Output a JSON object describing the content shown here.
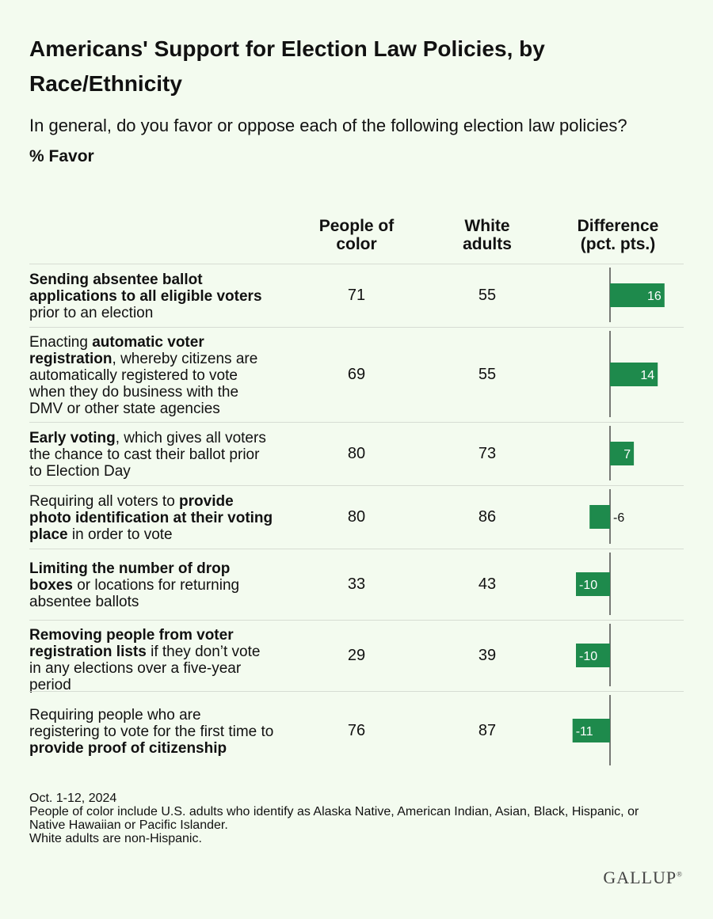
{
  "title": "Americans' Support for Election Law Policies, by Race/Ethnicity",
  "subtitle": "In general, do you favor or oppose each of the following election law policies?",
  "unit_label": "% Favor",
  "columns": {
    "poc": "People of color",
    "white": "White adults",
    "diff": "Difference (pct. pts.)"
  },
  "bar_color": "#1e8a4c",
  "rows": [
    {
      "segments": [
        [
          "Sending absentee ballot applications to all eligible voters",
          true
        ],
        [
          " prior to an election",
          false
        ]
      ],
      "poc": 71,
      "white": 55,
      "diff": 16
    },
    {
      "segments": [
        [
          "Enacting ",
          false
        ],
        [
          "automatic voter registration",
          true
        ],
        [
          ", whereby citizens are automatically registered to vote when they do business with the DMV or other state agencies",
          false
        ]
      ],
      "poc": 69,
      "white": 55,
      "diff": 14
    },
    {
      "segments": [
        [
          "Early voting",
          true
        ],
        [
          ", which gives all voters the chance to cast their ballot prior to Election Day",
          false
        ]
      ],
      "poc": 80,
      "white": 73,
      "diff": 7
    },
    {
      "segments": [
        [
          "Requiring all voters to ",
          false
        ],
        [
          "provide photo identification at their voting place",
          true
        ],
        [
          " in order to vote",
          false
        ]
      ],
      "poc": 80,
      "white": 86,
      "diff": -6
    },
    {
      "segments": [
        [
          "Limiting the number of drop boxes",
          true
        ],
        [
          " or locations for returning absentee ballots",
          false
        ]
      ],
      "poc": 33,
      "white": 43,
      "diff": -10
    },
    {
      "segments": [
        [
          "Removing people from voter registration lists",
          true
        ],
        [
          " if they don’t vote in any elections over a five-year period",
          false
        ]
      ],
      "poc": 29,
      "white": 39,
      "diff": -10
    },
    {
      "segments": [
        [
          "Requiring people who are registering to vote for the first time to ",
          false
        ],
        [
          "provide proof of citizenship",
          true
        ]
      ],
      "poc": 76,
      "white": 87,
      "diff": -11
    }
  ],
  "chart_data": {
    "type": "table",
    "categories": [
      "Sending absentee ballot applications to all eligible voters prior to an election",
      "Enacting automatic voter registration, whereby citizens are automatically registered to vote when they do business with the DMV or other state agencies",
      "Early voting, which gives all voters the chance to cast their ballot prior to Election Day",
      "Requiring all voters to provide photo identification at their voting place in order to vote",
      "Limiting the number of drop boxes or locations for returning absentee ballots",
      "Removing people from voter registration lists if they don’t vote in any elections over a five-year period",
      "Requiring people who are registering to vote for the first time to provide proof of citizenship"
    ],
    "series": [
      {
        "name": "People of color",
        "values": [
          71,
          69,
          80,
          80,
          33,
          29,
          76
        ]
      },
      {
        "name": "White adults",
        "values": [
          55,
          55,
          73,
          86,
          43,
          39,
          87
        ]
      },
      {
        "name": "Difference (pct. pts.)",
        "values": [
          16,
          14,
          7,
          -6,
          -10,
          -10,
          -11
        ]
      }
    ],
    "title": "Americans' Support for Election Law Policies, by Race/Ethnicity",
    "ylabel": "% Favor"
  },
  "footer": {
    "date": "Oct. 1-12, 2024",
    "note1": "People of color include U.S. adults who identify as Alaska Native, American Indian, Asian, Black, Hispanic, or Native Hawaiian or Pacific Islander.",
    "note2": "White adults are non-Hispanic."
  },
  "logo": "GALLUP"
}
